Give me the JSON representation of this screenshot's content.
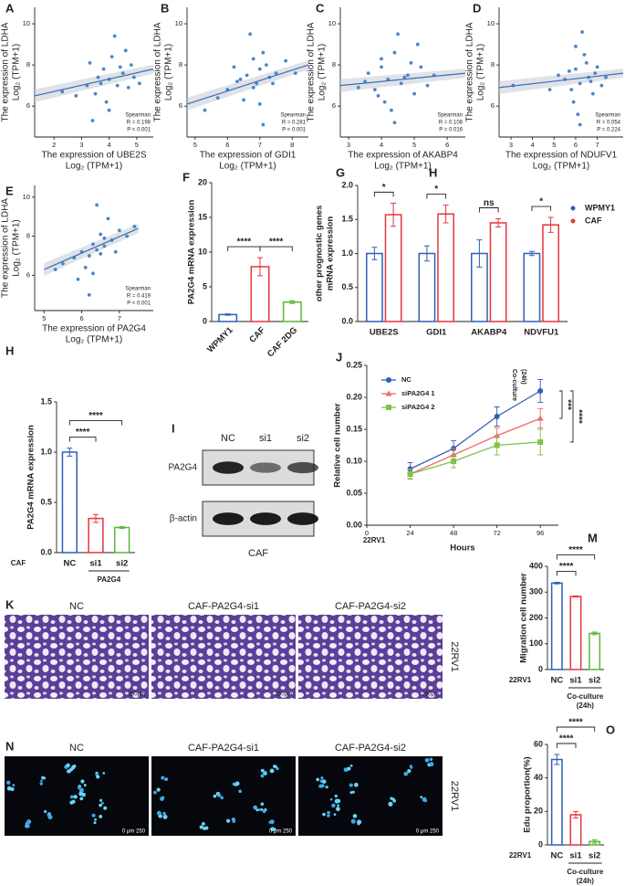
{
  "chart_data": [
    {
      "type": "scatter",
      "panel_label": "A",
      "x_label": [
        "The expression of UBE2S",
        "Log₂ (TPM+1)"
      ],
      "y_label": [
        "The expression of LDHA",
        "Log₂ (TPM+1)"
      ],
      "annotations": [
        "Spearman",
        "R = 0.198",
        "P < 0.001"
      ],
      "color": "#4a86c8",
      "x": [
        3.2,
        3.5,
        3.8,
        4.0,
        4.1,
        4.3,
        4.5,
        4.7,
        3.9,
        4.2,
        3.6,
        4.8,
        5.1,
        2.8,
        3.3,
        4.4,
        4.0,
        3.7,
        4.6,
        2.3,
        4.9,
        3.4
      ],
      "y": [
        7.0,
        6.6,
        7.8,
        7.3,
        8.4,
        7.0,
        7.6,
        6.9,
        6.2,
        9.4,
        7.4,
        8.0,
        7.1,
        6.5,
        8.1,
        7.9,
        5.8,
        7.1,
        8.7,
        6.7,
        7.4,
        5.3
      ],
      "fit": {
        "x": [
          1.3,
          5.6
        ],
        "y": [
          6.5,
          7.8
        ]
      },
      "xlim": [
        1.3,
        5.6
      ],
      "ylim": [
        4.5,
        10.8
      ],
      "xticks": [
        2,
        3,
        4,
        5
      ],
      "yticks": [
        6,
        8,
        10
      ]
    },
    {
      "type": "scatter",
      "panel_label": "B",
      "x_label": [
        "The expression of GDI1",
        "Log₂ (TPM+1)"
      ],
      "y_label": [
        "The expression of LDHA",
        "Log₂ (TPM+1)"
      ],
      "annotations": [
        "Spearman",
        "R = 0.281",
        "P < 0.001"
      ],
      "color": "#4a86c8",
      "x": [
        6.0,
        6.3,
        6.6,
        6.8,
        7.0,
        7.1,
        7.3,
        6.5,
        6.9,
        7.2,
        7.5,
        6.2,
        5.7,
        7.8,
        6.7,
        7.0,
        6.4,
        7.4,
        5.3,
        8.1,
        6.8,
        7.1
      ],
      "y": [
        6.8,
        7.2,
        7.5,
        6.9,
        7.8,
        8.6,
        7.4,
        6.3,
        7.1,
        8.0,
        7.6,
        7.9,
        6.4,
        8.2,
        9.5,
        6.1,
        7.3,
        7.1,
        5.8,
        7.6,
        8.3,
        5.1
      ],
      "fit": {
        "x": [
          4.75,
          8.5
        ],
        "y": [
          6.1,
          8.0
        ]
      },
      "xlim": [
        4.75,
        8.5
      ],
      "ylim": [
        4.5,
        10.8
      ],
      "xticks": [
        5,
        6,
        7,
        8
      ],
      "yticks": [
        6,
        8,
        10
      ]
    },
    {
      "type": "scatter",
      "panel_label": "C",
      "x_label": [
        "The expression of AKABP4",
        "Log₂ (TPM+1)"
      ],
      "y_label": [
        "The expression of LDHA",
        "Log₂ (TPM+1)"
      ],
      "annotations": [
        "Spearman",
        "R = 0.108",
        "P = 0.016"
      ],
      "color": "#4a86c8",
      "x": [
        3.5,
        3.8,
        4.0,
        4.2,
        4.4,
        4.6,
        4.8,
        5.0,
        5.2,
        4.1,
        4.5,
        3.6,
        4.3,
        4.9,
        5.4,
        3.3,
        4.7,
        4.0,
        5.6,
        4.4,
        3.9,
        5.1
      ],
      "y": [
        7.2,
        6.8,
        7.9,
        7.3,
        8.6,
        7.1,
        7.5,
        6.6,
        7.9,
        6.2,
        9.5,
        7.6,
        5.8,
        8.1,
        7.0,
        6.9,
        7.4,
        8.3,
        7.5,
        5.2,
        6.5,
        9.0
      ],
      "fit": {
        "x": [
          2.75,
          6.55
        ],
        "y": [
          7.0,
          7.6
        ]
      },
      "xlim": [
        2.75,
        6.55
      ],
      "ylim": [
        4.5,
        10.8
      ],
      "xticks": [
        3,
        4,
        5,
        6
      ],
      "yticks": [
        6,
        8,
        10
      ]
    },
    {
      "type": "scatter",
      "panel_label": "D",
      "x_label": [
        "The expression of NDUFV1",
        "Log₂ (TPM+1)"
      ],
      "y_label": [
        "The expression of LDHA",
        "Log₂ (TPM+1)"
      ],
      "annotations": [
        "Spearman",
        "R = 0.054",
        "P = 0.224"
      ],
      "color": "#4a86c8",
      "x": [
        5.5,
        5.8,
        6.0,
        6.2,
        6.4,
        6.6,
        6.8,
        7.0,
        5.9,
        6.3,
        6.7,
        5.2,
        6.1,
        6.5,
        7.2,
        4.8,
        6.9,
        6.0,
        7.4,
        6.2,
        3.1,
        5.7
      ],
      "y": [
        7.3,
        6.8,
        7.8,
        7.1,
        8.5,
        7.4,
        6.6,
        7.9,
        6.2,
        9.6,
        7.2,
        7.5,
        5.6,
        8.1,
        7.0,
        6.8,
        7.6,
        8.9,
        7.4,
        5.1,
        7.0,
        7.7
      ],
      "fit": {
        "x": [
          2.45,
          8.2
        ],
        "y": [
          6.9,
          7.6
        ]
      },
      "xlim": [
        2.45,
        8.2
      ],
      "ylim": [
        4.5,
        10.8
      ],
      "xticks": [
        3,
        4,
        5,
        6,
        7
      ],
      "yticks": [
        6,
        8,
        10
      ]
    },
    {
      "type": "scatter",
      "panel_label": "E",
      "x_label": [
        "The expression of PA2G4",
        "Log₂ (TPM+1)"
      ],
      "y_label": [
        "The expression of LDHA",
        "Log₂ (TPM+1)"
      ],
      "annotations": [
        "Spearman",
        "R = 0.419",
        "P < 0.001"
      ],
      "color": "#4a86c8",
      "x": [
        5.8,
        6.0,
        6.2,
        6.3,
        6.4,
        6.5,
        6.6,
        6.8,
        7.0,
        6.1,
        6.4,
        5.5,
        6.7,
        6.9,
        7.2,
        5.9,
        6.3,
        6.5,
        7.4,
        5.3,
        6.2,
        6.6
      ],
      "y": [
        6.9,
        7.2,
        7.0,
        7.6,
        7.3,
        8.1,
        7.5,
        7.8,
        8.3,
        6.4,
        9.6,
        6.6,
        8.9,
        7.2,
        8.0,
        5.8,
        6.1,
        7.1,
        8.5,
        6.3,
        5.0,
        7.9
      ],
      "fit": {
        "x": [
          5.0,
          7.5
        ],
        "y": [
          6.3,
          8.4
        ]
      },
      "xlim": [
        4.75,
        7.9
      ],
      "ylim": [
        4.2,
        10.6
      ],
      "xticks": [
        5,
        6,
        7
      ],
      "yticks": [
        6,
        8,
        10
      ]
    },
    {
      "type": "bar",
      "panel_label": "F",
      "y_label": [
        "PA2G4 mRNA expression"
      ],
      "categories": [
        "WPMY1",
        "CAF",
        "CAF 2DG"
      ],
      "values": [
        1.0,
        7.9,
        2.8
      ],
      "errors": [
        0.1,
        1.3,
        0.2
      ],
      "colors": [
        "#2e5fb8",
        "#e6353a",
        "#5cb83a"
      ],
      "ylim": [
        0,
        20
      ],
      "yticks": [
        0,
        5,
        10,
        15,
        20
      ],
      "comparisons": [
        {
          "label": "****",
          "groups": [
            "WPMY1",
            "CAF"
          ]
        },
        {
          "label": "****",
          "groups": [
            "CAF",
            "CAF 2DG"
          ]
        }
      ]
    },
    {
      "type": "bar",
      "panel_label": "G",
      "secondary_label": "H",
      "y_label": [
        "other prognostic genes",
        "mRNA expression"
      ],
      "categories": [
        "UBE2S",
        "GDI1",
        "AKABP4",
        "NDVFU1"
      ],
      "series": [
        {
          "name": "WPMY1",
          "color": "#2e5fb8",
          "values": [
            1.0,
            1.0,
            1.0,
            1.0
          ],
          "errors": [
            0.09,
            0.11,
            0.2,
            0.03
          ]
        },
        {
          "name": "CAF",
          "color": "#e6353a",
          "values": [
            1.57,
            1.58,
            1.45,
            1.42
          ],
          "errors": [
            0.17,
            0.13,
            0.06,
            0.11
          ]
        }
      ],
      "ylim": [
        0,
        2
      ],
      "yticks": [
        {
          "value": 0,
          "label": "0.0"
        },
        0.5,
        {
          "value": 1,
          "label": "1.0"
        },
        1.5,
        {
          "value": 2,
          "label": "2.0"
        }
      ],
      "comparisons": [
        {
          "label": "*",
          "category": "UBE2S"
        },
        {
          "label": "*",
          "category": "GDI1"
        },
        {
          "label": "ns",
          "category": "AKABP4"
        },
        {
          "label": "*",
          "category": "NDVFU1"
        }
      ]
    },
    {
      "type": "bar",
      "panel_label": "H",
      "y_label": [
        "PA2G4 mRNA expression"
      ],
      "row_label": "CAF",
      "group_label": [
        "PA2G4"
      ],
      "categories": [
        "NC",
        "si1",
        "si2"
      ],
      "values": [
        1.0,
        0.34,
        0.25
      ],
      "errors": [
        0.04,
        0.04,
        0.01
      ],
      "colors": [
        "#2e5fb8",
        "#e6353a",
        "#5cb83a"
      ],
      "ylim": [
        0,
        1.5
      ],
      "yticks": [
        {
          "value": 0,
          "label": "0.0"
        },
        0.5,
        {
          "value": 1,
          "label": "1.0"
        },
        1.5
      ],
      "comparisons": [
        {
          "label": "****",
          "groups": [
            "NC",
            "si1"
          ]
        },
        {
          "label": "****",
          "groups": [
            "NC",
            "si2"
          ]
        }
      ]
    },
    {
      "type": "line",
      "panel_label": "J",
      "y_label": [
        "Relative cell number"
      ],
      "x_label": "Hours",
      "row_label": "22RV1",
      "annotation": [
        "Co-culture",
        "(24h)"
      ],
      "x": [
        24,
        48,
        72,
        96
      ],
      "series": [
        {
          "name": "NC",
          "color": "#2e5fb8",
          "values": [
            0.088,
            0.12,
            0.17,
            0.21
          ],
          "errors": [
            0.01,
            0.012,
            0.015,
            0.018
          ]
        },
        {
          "name": "siPA2G4 1",
          "color": "#f06a6a",
          "values": [
            0.08,
            0.11,
            0.14,
            0.167
          ],
          "errors": [
            0.008,
            0.01,
            0.012,
            0.015
          ]
        },
        {
          "name": "siPA2G4 2",
          "color": "#7fc24a",
          "values": [
            0.08,
            0.1,
            0.125,
            0.13
          ],
          "errors": [
            0.007,
            0.01,
            0.015,
            0.02
          ]
        }
      ],
      "xlim": [
        0,
        106
      ],
      "ylim": [
        0,
        0.25
      ],
      "xticks": [
        0,
        24,
        48,
        72,
        96
      ],
      "yticks": [
        {
          "value": 0,
          "label": "0.00"
        },
        0.05,
        {
          "value": 0.1,
          "label": "0.10"
        },
        0.15,
        {
          "value": 0.2,
          "label": "0.20"
        },
        0.25
      ],
      "comparisons": [
        {
          "label": "***",
          "series": [
            "NC",
            "siPA2G4 1"
          ]
        },
        {
          "label": "****",
          "series": [
            "NC",
            "siPA2G4 2"
          ]
        }
      ]
    },
    {
      "type": "bar",
      "panel_label": "M",
      "y_label": [
        "Migration cell number"
      ],
      "row_label": "22RV1",
      "group_label": [
        "Co-culture",
        "(24h)"
      ],
      "categories": [
        "NC",
        "si1",
        "si2"
      ],
      "values": [
        335,
        283,
        140
      ],
      "errors": [
        3,
        2,
        5
      ],
      "colors": [
        "#2e5fb8",
        "#e6353a",
        "#5cb83a"
      ],
      "ylim": [
        0,
        400
      ],
      "yticks": [
        0,
        100,
        200,
        300,
        400
      ],
      "comparisons": [
        {
          "label": "****",
          "groups": [
            "NC",
            "si1"
          ]
        },
        {
          "label": "****",
          "groups": [
            "NC",
            "si2"
          ]
        }
      ]
    },
    {
      "type": "bar",
      "panel_label": "O",
      "y_label": [
        "Edu proportion(%)"
      ],
      "row_label": "22RV1",
      "group_label": [
        "Co-culture",
        "(24h)"
      ],
      "categories": [
        "NC",
        "si1",
        "si2"
      ],
      "values": [
        51,
        18,
        2
      ],
      "errors": [
        3,
        2,
        1
      ],
      "colors": [
        "#2e5fb8",
        "#e6353a",
        "#5cb83a"
      ],
      "ylim": [
        0,
        60
      ],
      "yticks": [
        0,
        20,
        40,
        60
      ],
      "comparisons": [
        {
          "label": "****",
          "groups": [
            "NC",
            "si1"
          ]
        },
        {
          "label": "****",
          "groups": [
            "NC",
            "si2"
          ]
        }
      ]
    }
  ],
  "images": [
    {
      "panel_label": "I",
      "columns": [
        "NC",
        "si1",
        "si2"
      ],
      "rows": [
        "PA2G4",
        "β-actin"
      ],
      "caption": "CAF"
    },
    {
      "panel_label": "K",
      "titles": [
        "NC",
        "CAF-PA2G4-si1",
        "CAF-PA2G4-si2"
      ],
      "side_label": "22RV1",
      "scale_label": "250μm"
    },
    {
      "panel_label": "N",
      "titles": [
        "NC",
        "CAF-PA2G4-si1",
        "CAF-PA2G4-si2"
      ],
      "side_label": "22RV1",
      "scale_label": "0   μm   250"
    }
  ]
}
